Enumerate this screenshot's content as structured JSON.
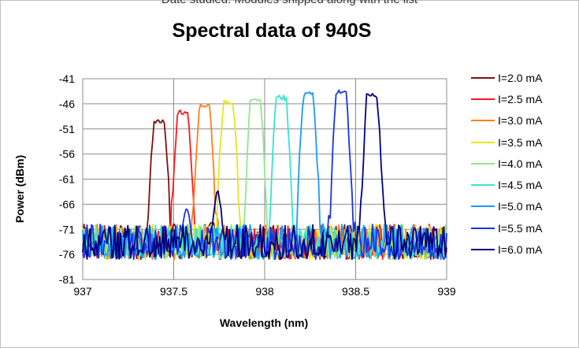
{
  "top_caption": "Date studied: Modules shipped along with the list",
  "chart_data": {
    "type": "line",
    "title": "Spectral data of 940S",
    "xlabel": "Wavelength (nm)",
    "ylabel": "Power (dBm)",
    "xlim": [
      937,
      939
    ],
    "ylim": [
      -81,
      -41
    ],
    "x_ticks": [
      "937",
      "937.5",
      "938",
      "938.5",
      "939"
    ],
    "y_ticks": [
      "-41",
      "-46",
      "-51",
      "-56",
      "-61",
      "-66",
      "-71",
      "-76",
      "-81"
    ],
    "grid": true,
    "legend_position": "right",
    "series": [
      {
        "name": "I=2.0 mA",
        "color": "#7f1010",
        "peak_x": 937.42,
        "peak_y": -49.0,
        "secondary": null
      },
      {
        "name": "I=2.5 mA",
        "color": "#ff1a1a",
        "peak_x": 937.55,
        "peak_y": -47.2,
        "secondary": null
      },
      {
        "name": "I=3.0 mA",
        "color": "#ff7f1a",
        "peak_x": 937.67,
        "peak_y": -45.8,
        "secondary": null
      },
      {
        "name": "I=3.5 mA",
        "color": "#e6e61a",
        "peak_x": 937.8,
        "peak_y": -45.0,
        "secondary": null
      },
      {
        "name": "I=4.0 mA",
        "color": "#8fe88f",
        "peak_x": 937.95,
        "peak_y": -44.5,
        "secondary": null
      },
      {
        "name": "I=4.5 mA",
        "color": "#33e6cc",
        "peak_x": 938.09,
        "peak_y": -44.2,
        "secondary": null
      },
      {
        "name": "I=5.0 mA",
        "color": "#1a99ff",
        "peak_x": 938.24,
        "peak_y": -43.3,
        "secondary": null
      },
      {
        "name": "I=5.5 mA",
        "color": "#1a33e6",
        "peak_x": 938.42,
        "peak_y": -43.0,
        "secondary": null
      },
      {
        "name": "I=6.0 mA",
        "color": "#000080",
        "peak_x": 938.59,
        "peak_y": -43.5,
        "secondary": null
      }
    ],
    "noise_floor_range": [
      -77,
      -70
    ],
    "side_peaks": [
      {
        "series": "I=2.0 mA",
        "x": 937.71,
        "y": -69.5
      },
      {
        "series": "I=5.5 mA",
        "x": 937.57,
        "y": -67.0
      },
      {
        "series": "I=6.0 mA",
        "x": 937.74,
        "y": -63.7
      }
    ]
  }
}
